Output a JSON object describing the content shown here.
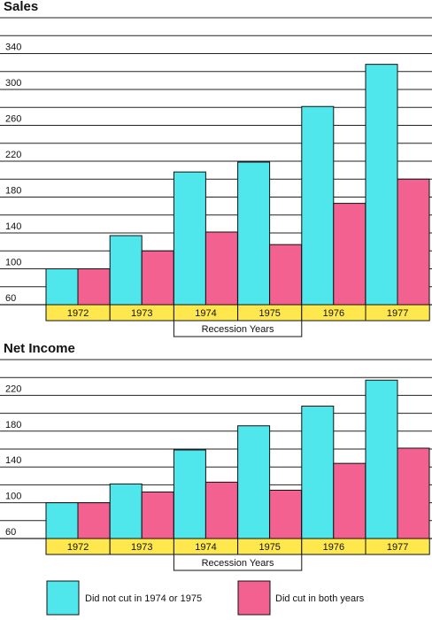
{
  "colors": {
    "not_cut": "#4fe6ec",
    "did_cut": "#f2618f",
    "category_band": "#ffe84d",
    "gridline": "#222222"
  },
  "legend": {
    "not_cut_label": "Did not cut in 1974 or 1975",
    "did_cut_label": "Did cut in both years"
  },
  "chart_data": [
    {
      "type": "bar",
      "title": "Sales",
      "categories": [
        "1972",
        "1973",
        "1974",
        "1975",
        "1976",
        "1977"
      ],
      "category_note": "Recession Years",
      "series": [
        {
          "name": "Did not cut in 1974 or 1975",
          "values": [
            100,
            137,
            208,
            219,
            281,
            328
          ]
        },
        {
          "name": "Did cut in both years",
          "values": [
            100,
            120,
            141,
            127,
            173,
            200
          ]
        }
      ],
      "yticks": [
        60,
        100,
        140,
        180,
        220,
        260,
        300,
        340
      ],
      "ylim": [
        60,
        380
      ],
      "grid": true
    },
    {
      "type": "bar",
      "title": "Net Income",
      "categories": [
        "1972",
        "1973",
        "1974",
        "1975",
        "1976",
        "1977"
      ],
      "category_note": "Recession Years",
      "series": [
        {
          "name": "Did not cut in 1974 or 1975",
          "values": [
            100,
            121,
            159,
            186,
            208,
            237
          ]
        },
        {
          "name": "Did cut in both years",
          "values": [
            100,
            112,
            123,
            114,
            144,
            161
          ]
        }
      ],
      "yticks": [
        60,
        100,
        140,
        180,
        220
      ],
      "ylim": [
        60,
        260
      ],
      "grid": true
    }
  ]
}
